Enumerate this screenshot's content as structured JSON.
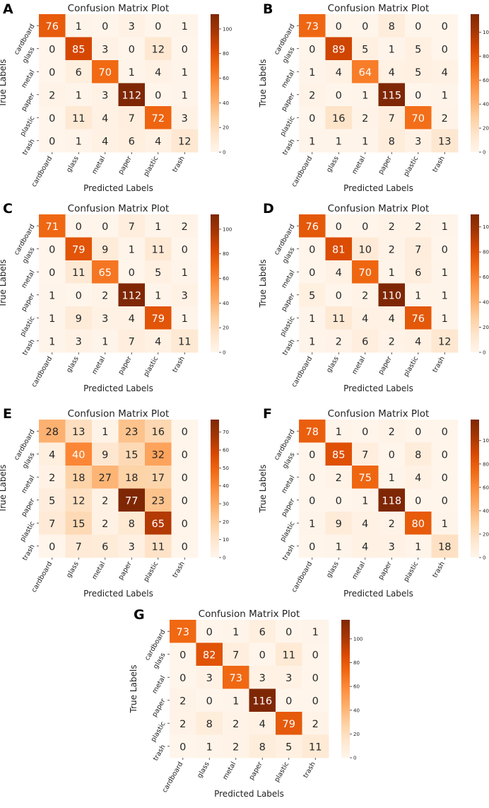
{
  "chart_data": [
    {
      "panel": "A",
      "type": "heatmap",
      "title": "Confusion Matrix Plot",
      "xlabel": "Predicted Labels",
      "ylabel": "True Labels",
      "categories": [
        "cardboard",
        "glass",
        "metal",
        "paper",
        "plastic",
        "trash"
      ],
      "values": [
        [
          76,
          1,
          0,
          3,
          0,
          1
        ],
        [
          0,
          85,
          3,
          0,
          12,
          0
        ],
        [
          0,
          6,
          70,
          1,
          4,
          1
        ],
        [
          2,
          1,
          3,
          112,
          0,
          1
        ],
        [
          0,
          11,
          4,
          7,
          72,
          3
        ],
        [
          0,
          1,
          4,
          6,
          4,
          12
        ]
      ],
      "colorbar_ticks": [
        0,
        20,
        40,
        60,
        80,
        100
      ],
      "vmin": 0,
      "vmax": 112
    },
    {
      "panel": "B",
      "type": "heatmap",
      "title": "Confusion Matrix Plot",
      "xlabel": "Predicted Labels",
      "ylabel": "True Labels",
      "categories": [
        "cardboard",
        "glass",
        "metal",
        "paper",
        "plastic",
        "trash"
      ],
      "values": [
        [
          73,
          0,
          0,
          8,
          0,
          0
        ],
        [
          0,
          89,
          5,
          1,
          5,
          0
        ],
        [
          1,
          4,
          64,
          4,
          5,
          4
        ],
        [
          2,
          0,
          1,
          115,
          0,
          1
        ],
        [
          0,
          16,
          2,
          7,
          70,
          2
        ],
        [
          1,
          1,
          1,
          8,
          3,
          13
        ]
      ],
      "colorbar_ticks": [
        0,
        20,
        40,
        60,
        80,
        100
      ],
      "vmin": 0,
      "vmax": 115
    },
    {
      "panel": "C",
      "type": "heatmap",
      "title": "Confusion Matrix Plot",
      "xlabel": "Predicted Labels",
      "ylabel": "True Labels",
      "categories": [
        "cardboard",
        "glass",
        "metal",
        "paper",
        "plastic",
        "trash"
      ],
      "values": [
        [
          71,
          0,
          0,
          7,
          1,
          2
        ],
        [
          0,
          79,
          9,
          1,
          11,
          0
        ],
        [
          0,
          11,
          65,
          0,
          5,
          1
        ],
        [
          1,
          0,
          2,
          112,
          1,
          3
        ],
        [
          1,
          9,
          3,
          4,
          79,
          1
        ],
        [
          1,
          3,
          1,
          7,
          4,
          11
        ]
      ],
      "colorbar_ticks": [
        0,
        20,
        40,
        60,
        80,
        100
      ],
      "vmin": 0,
      "vmax": 112
    },
    {
      "panel": "D",
      "type": "heatmap",
      "title": "Confusion Matrix Plot",
      "xlabel": "Predicted Labels",
      "ylabel": "True Labels",
      "categories": [
        "cardboard",
        "glass",
        "metal",
        "paper",
        "plastic",
        "trash"
      ],
      "values": [
        [
          76,
          0,
          0,
          2,
          2,
          1
        ],
        [
          0,
          81,
          10,
          2,
          7,
          0
        ],
        [
          0,
          4,
          70,
          1,
          6,
          1
        ],
        [
          5,
          0,
          2,
          110,
          1,
          1
        ],
        [
          1,
          11,
          4,
          4,
          76,
          1
        ],
        [
          1,
          2,
          6,
          2,
          4,
          12
        ]
      ],
      "colorbar_ticks": [
        0,
        20,
        40,
        60,
        80,
        100
      ],
      "vmin": 0,
      "vmax": 110
    },
    {
      "panel": "E",
      "type": "heatmap",
      "title": "Confusion Matrix Plot",
      "xlabel": "Predicted Labels",
      "ylabel": "True Labels",
      "categories": [
        "cardboard",
        "glass",
        "metal",
        "paper",
        "plastic",
        "trash"
      ],
      "values": [
        [
          28,
          13,
          1,
          23,
          16,
          0
        ],
        [
          4,
          40,
          9,
          15,
          32,
          0
        ],
        [
          2,
          18,
          27,
          18,
          17,
          0
        ],
        [
          5,
          12,
          2,
          77,
          23,
          0
        ],
        [
          7,
          15,
          2,
          8,
          65,
          0
        ],
        [
          0,
          7,
          6,
          3,
          11,
          0
        ]
      ],
      "colorbar_ticks": [
        0,
        10,
        20,
        30,
        40,
        50,
        60,
        70
      ],
      "vmin": 0,
      "vmax": 77
    },
    {
      "panel": "F",
      "type": "heatmap",
      "title": "Confusion Matrix Plot",
      "xlabel": "Predicted Labels",
      "ylabel": "True Labels",
      "categories": [
        "cardboard",
        "glass",
        "metal",
        "paper",
        "plastic",
        "trash"
      ],
      "values": [
        [
          78,
          1,
          0,
          2,
          0,
          0
        ],
        [
          0,
          85,
          7,
          0,
          8,
          0
        ],
        [
          0,
          2,
          75,
          1,
          4,
          0
        ],
        [
          0,
          0,
          1,
          118,
          0,
          0
        ],
        [
          1,
          9,
          4,
          2,
          80,
          1
        ],
        [
          0,
          1,
          4,
          3,
          1,
          18
        ]
      ],
      "colorbar_ticks": [
        0,
        20,
        40,
        60,
        80,
        100
      ],
      "vmin": 0,
      "vmax": 118
    },
    {
      "panel": "G",
      "type": "heatmap",
      "title": "Confusion Matrix Plot",
      "xlabel": "Predicted Labels",
      "ylabel": "True Labels",
      "categories": [
        "cardboard",
        "glass",
        "metal",
        "paper",
        "plastic",
        "trash"
      ],
      "values": [
        [
          73,
          0,
          1,
          6,
          0,
          1
        ],
        [
          0,
          82,
          7,
          0,
          11,
          0
        ],
        [
          0,
          3,
          73,
          3,
          3,
          0
        ],
        [
          2,
          0,
          1,
          116,
          0,
          0
        ],
        [
          2,
          8,
          2,
          4,
          79,
          2
        ],
        [
          0,
          1,
          2,
          8,
          5,
          11
        ]
      ],
      "colorbar_ticks": [
        0,
        20,
        40,
        60,
        80,
        100
      ],
      "vmin": 0,
      "vmax": 116
    }
  ],
  "colormap": {
    "low": "#fff5eb",
    "high": "#7f2704"
  }
}
